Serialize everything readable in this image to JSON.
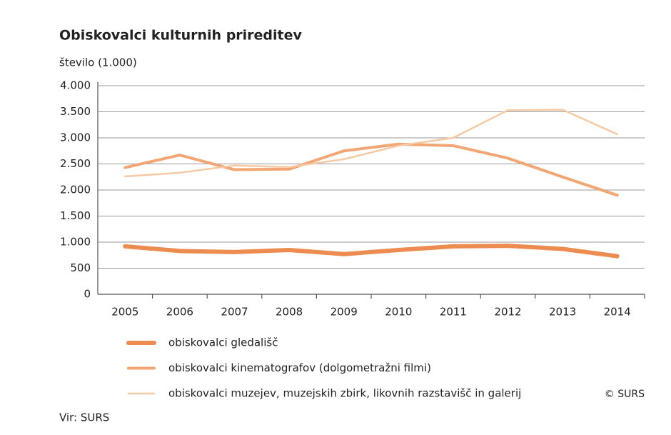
{
  "chart_data": {
    "type": "line",
    "title": "Obiskovalci kulturnih prireditev",
    "ylabel": "število (1.000)",
    "categories": [
      "2005",
      "2006",
      "2007",
      "2008",
      "2009",
      "2010",
      "2011",
      "2012",
      "2013",
      "2014"
    ],
    "series": [
      {
        "name": "obiskovalci gledališč",
        "color": "#ec8c50",
        "values": [
          920,
          830,
          810,
          850,
          770,
          850,
          920,
          930,
          870,
          730
        ]
      },
      {
        "name": "obiskovalci kinematografov (dolgometražni filmi)",
        "color": "#f2a673",
        "values": [
          2430,
          2670,
          2390,
          2400,
          2750,
          2880,
          2850,
          2610,
          2250,
          1900
        ]
      },
      {
        "name": "obiskovalci muzejev, muzejskih zbirk, likovnih razstavišč in galerij",
        "color": "#f6c9a2",
        "values": [
          2260,
          2330,
          2470,
          2440,
          2590,
          2850,
          3000,
          3530,
          3540,
          3070
        ]
      }
    ],
    "ylim": [
      0,
      4000
    ],
    "yticks": [
      0,
      500,
      {
        "value": 1000,
        "label": "1.000"
      },
      {
        "value": 1500,
        "label": "1.500"
      },
      {
        "value": 2000,
        "label": "2.000"
      },
      {
        "value": 2500,
        "label": "2.500"
      },
      {
        "value": 3000,
        "label": "3.000"
      },
      {
        "value": 3500,
        "label": "3.500"
      },
      {
        "value": 4000,
        "label": "4.000"
      }
    ],
    "grid": true,
    "copyright": "© SURS",
    "source": "Vir: SURS"
  }
}
